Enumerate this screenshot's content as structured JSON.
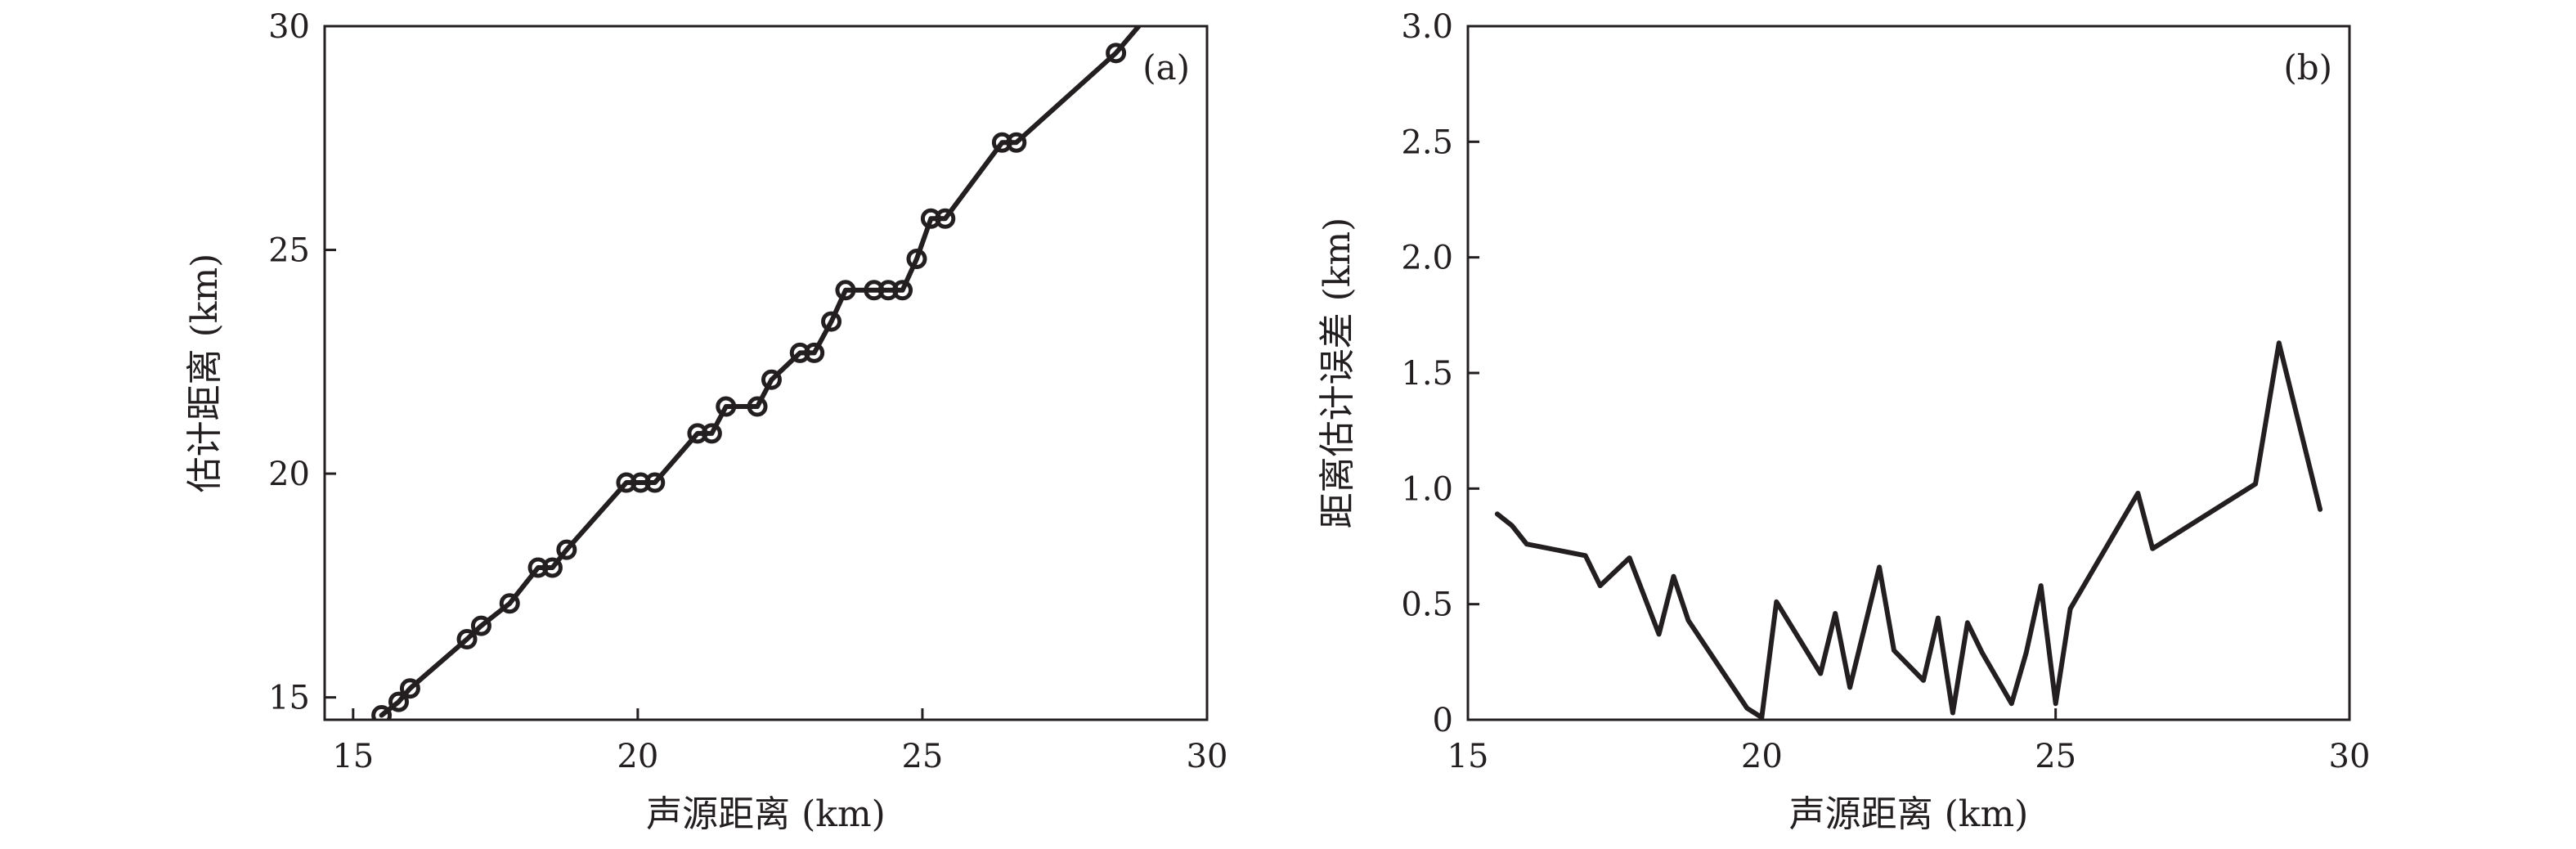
{
  "chart_data": [
    {
      "panel": "(a)",
      "type": "line",
      "xlabel": "声源距离 (km)",
      "ylabel": "估计距离 (km)",
      "xlim": [
        14.5,
        30
      ],
      "ylim": [
        14.5,
        30
      ],
      "xticks": [
        15,
        20,
        25,
        30
      ],
      "yticks": [
        15,
        20,
        25,
        30
      ],
      "xtick_labels": [
        "15",
        "20",
        "25",
        "30"
      ],
      "ytick_labels": [
        "15",
        "20",
        "25",
        "30"
      ],
      "markers": "open-circle",
      "grid": false,
      "series": [
        {
          "x": [
            15.5,
            15.8,
            16.0,
            17.0,
            17.25,
            17.75,
            18.25,
            18.5,
            18.75,
            19.8,
            20.05,
            20.3,
            21.05,
            21.3,
            21.55,
            22.1,
            22.35,
            22.85,
            23.1,
            23.4,
            23.65,
            24.15,
            24.4,
            24.65,
            24.9,
            25.15,
            25.4,
            26.4,
            26.65,
            28.4,
            28.8
          ],
          "values": [
            14.6,
            14.9,
            15.2,
            16.3,
            16.6,
            17.1,
            17.9,
            17.9,
            18.3,
            19.8,
            19.8,
            19.8,
            20.9,
            20.9,
            21.5,
            21.5,
            22.1,
            22.7,
            22.7,
            23.4,
            24.1,
            24.1,
            24.1,
            24.1,
            24.8,
            25.7,
            25.7,
            27.4,
            27.4,
            29.4,
            30.0
          ],
          "marker_mask": [
            1,
            1,
            1,
            1,
            1,
            1,
            1,
            1,
            1,
            1,
            1,
            1,
            1,
            1,
            1,
            1,
            1,
            1,
            1,
            1,
            1,
            1,
            1,
            1,
            1,
            1,
            1,
            1,
            1,
            1,
            0
          ]
        }
      ]
    },
    {
      "panel": "(b)",
      "type": "line",
      "xlabel": "声源距离 (km)",
      "ylabel": "距离估计误差 (km)",
      "xlim": [
        15,
        30
      ],
      "ylim": [
        0,
        3
      ],
      "xticks": [
        15,
        20,
        25,
        30
      ],
      "yticks": [
        0,
        0.5,
        1.0,
        1.5,
        2.0,
        2.5,
        3.0
      ],
      "xtick_labels": [
        "15",
        "20",
        "25",
        "30"
      ],
      "ytick_labels": [
        "0",
        "0.5",
        "1.0",
        "1.5",
        "2.0",
        "2.5",
        "3.0"
      ],
      "grid": false,
      "series": [
        {
          "x": [
            15.5,
            15.75,
            16.0,
            17.0,
            17.25,
            17.75,
            18.25,
            18.5,
            18.75,
            19.75,
            20.0,
            20.25,
            21.0,
            21.25,
            21.5,
            22.0,
            22.25,
            22.75,
            23.0,
            23.25,
            23.5,
            23.75,
            24.25,
            24.5,
            24.75,
            25.0,
            25.25,
            26.4,
            26.65,
            28.4,
            28.8,
            29.5
          ],
          "values": [
            0.89,
            0.84,
            0.76,
            0.71,
            0.58,
            0.7,
            0.37,
            0.62,
            0.43,
            0.05,
            0.01,
            0.51,
            0.2,
            0.46,
            0.14,
            0.66,
            0.3,
            0.17,
            0.44,
            0.03,
            0.42,
            0.29,
            0.07,
            0.29,
            0.58,
            0.07,
            0.48,
            0.98,
            0.74,
            1.02,
            1.63,
            0.91
          ]
        }
      ]
    }
  ]
}
